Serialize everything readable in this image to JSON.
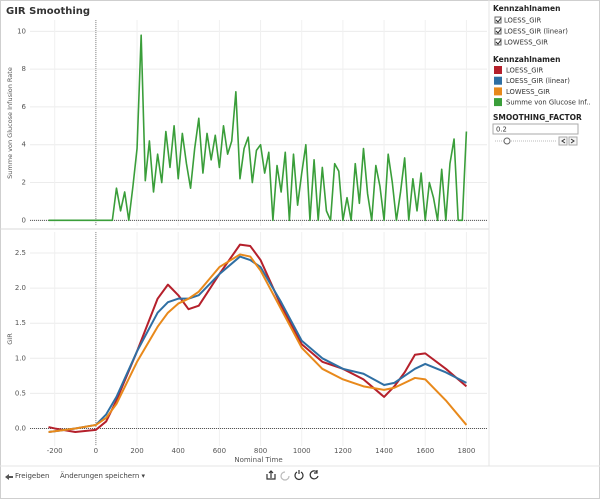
{
  "title": "GIR Smoothing",
  "chart_data": [
    {
      "type": "line",
      "y_label": "Summe von Glucose Infusion Rate",
      "xlim": [
        -320,
        1900
      ],
      "ylim": [
        -0.3,
        10.6
      ],
      "xticks": [
        -200,
        0,
        200,
        400,
        600,
        800,
        1000,
        1200,
        1400,
        1600,
        1800
      ],
      "yticks": [
        0,
        2,
        4,
        6,
        8,
        10
      ],
      "grid": true,
      "x": [
        -230,
        80,
        100,
        120,
        140,
        160,
        180,
        200,
        220,
        240,
        260,
        280,
        300,
        320,
        340,
        360,
        380,
        400,
        420,
        440,
        460,
        480,
        500,
        520,
        540,
        560,
        580,
        600,
        620,
        640,
        660,
        680,
        700,
        720,
        740,
        760,
        780,
        800,
        820,
        840,
        860,
        880,
        900,
        920,
        940,
        960,
        980,
        1000,
        1020,
        1040,
        1060,
        1080,
        1100,
        1120,
        1140,
        1160,
        1180,
        1200,
        1220,
        1240,
        1260,
        1280,
        1300,
        1320,
        1340,
        1360,
        1380,
        1400,
        1420,
        1440,
        1460,
        1480,
        1500,
        1520,
        1540,
        1560,
        1580,
        1600,
        1620,
        1640,
        1660,
        1680,
        1700,
        1720,
        1740,
        1760,
        1780,
        1800
      ],
      "series": [
        {
          "name": "Summe von Glucose Inf..",
          "color": "#3a9e3a",
          "values": [
            0,
            0,
            1.7,
            0.5,
            1.5,
            0,
            1.8,
            3.8,
            9.8,
            2.1,
            4.2,
            1.5,
            3.5,
            2.0,
            4.7,
            2.8,
            5.0,
            2.2,
            4.6,
            3.0,
            1.7,
            3.8,
            5.4,
            2.5,
            4.6,
            3.2,
            4.5,
            2.8,
            5.0,
            3.5,
            4.2,
            6.8,
            2.2,
            3.8,
            4.4,
            2.0,
            3.7,
            4.0,
            2.5,
            3.6,
            0,
            2.9,
            1.5,
            3.6,
            0,
            3.5,
            0.8,
            2.5,
            4.0,
            0,
            3.2,
            0,
            2.8,
            0.5,
            0,
            3.0,
            2.6,
            0,
            1.2,
            0,
            3.0,
            0.9,
            3.8,
            1.4,
            0,
            2.9,
            1.8,
            0,
            3.5,
            2.0,
            0,
            1.5,
            3.3,
            0,
            2.2,
            0.5,
            2.5,
            0,
            2.0,
            1.2,
            0,
            2.7,
            0,
            3.0,
            4.3,
            0,
            0,
            4.7
          ]
        }
      ]
    },
    {
      "type": "line",
      "y_label": "GIR",
      "x_label": "Nominal Time",
      "xlim": [
        -320,
        1900
      ],
      "ylim": [
        -0.25,
        2.8
      ],
      "xticks": [
        -200,
        0,
        200,
        400,
        600,
        800,
        1000,
        1200,
        1400,
        1600,
        1800
      ],
      "yticks": [
        {
          "value": 0,
          "label": "0.0"
        },
        0.5,
        {
          "value": 1,
          "label": "1.0"
        },
        1.5,
        {
          "value": 2,
          "label": "2.0"
        },
        2.5
      ],
      "grid": true,
      "x": [
        -230,
        -200,
        -100,
        0,
        50,
        100,
        200,
        300,
        350,
        400,
        450,
        500,
        600,
        700,
        750,
        800,
        900,
        1000,
        1100,
        1200,
        1300,
        1400,
        1450,
        1500,
        1550,
        1600,
        1700,
        1800
      ],
      "series": [
        {
          "name": "LOESS_GIR",
          "color": "#b5202b",
          "values": [
            0.02,
            0.0,
            -0.05,
            -0.02,
            0.1,
            0.4,
            1.1,
            1.85,
            2.05,
            1.9,
            1.7,
            1.75,
            2.2,
            2.62,
            2.6,
            2.4,
            1.75,
            1.2,
            0.95,
            0.85,
            0.7,
            0.45,
            0.6,
            0.8,
            1.05,
            1.07,
            0.85,
            0.6
          ]
        },
        {
          "name": "LOESS_GIR (linear)",
          "color": "#2f6fa3",
          "values": [
            -0.05,
            -0.04,
            0,
            0.05,
            0.2,
            0.45,
            1.1,
            1.65,
            1.8,
            1.85,
            1.85,
            1.9,
            2.2,
            2.45,
            2.4,
            2.3,
            1.8,
            1.25,
            1.0,
            0.85,
            0.78,
            0.62,
            0.65,
            0.75,
            0.85,
            0.92,
            0.8,
            0.65
          ]
        },
        {
          "name": "LOWESS_GIR",
          "color": "#e8891b",
          "values": [
            -0.05,
            -0.04,
            0,
            0.05,
            0.15,
            0.35,
            0.95,
            1.45,
            1.65,
            1.78,
            1.85,
            1.95,
            2.3,
            2.48,
            2.45,
            2.25,
            1.7,
            1.15,
            0.85,
            0.7,
            0.6,
            0.55,
            0.58,
            0.65,
            0.72,
            0.7,
            0.4,
            0.05
          ]
        }
      ]
    }
  ],
  "sidebar": {
    "filter_title": "Kennzahlnamen",
    "filter_items": [
      "LOESS_GIR",
      "LOESS_GIR (linear)",
      "LOWESS_GIR"
    ],
    "legend_title": "Kennzahlnamen",
    "parameter_title": "SMOOTHING_FACTOR",
    "parameter_value": 0.2
  },
  "footer": {
    "share": "Freigeben",
    "save": "Änderungen speichern ▾"
  }
}
